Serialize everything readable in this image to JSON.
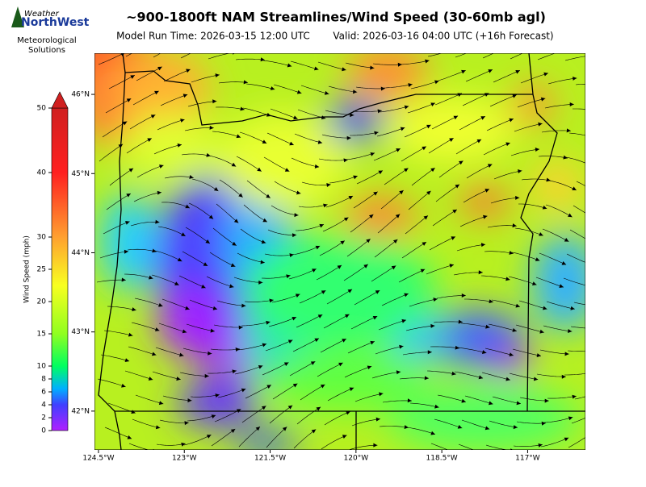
{
  "header": {
    "logo_top": "Weather",
    "logo_main": "NorthWest",
    "logo_sub1": "Meteorological",
    "logo_sub2": "Solutions",
    "title": "~900-1800ft NAM Streamlines/Wind Speed (30-60mb agl)",
    "model_run": "Model Run Time: 2026-03-15 12:00 UTC",
    "valid": "Valid: 2026-03-16 04:00 UTC  (+16h Forecast)"
  },
  "colorbar": {
    "label": "Wind Speed (mph)",
    "lim": [
      0,
      50
    ],
    "ticks": [
      0,
      2,
      4,
      6,
      8,
      10,
      15,
      20,
      25,
      30,
      40,
      50
    ]
  },
  "map": {
    "xlim": [
      -124.57,
      -115.99
    ],
    "ylim": [
      41.51,
      46.52
    ],
    "xticks": [
      {
        "value": -124.5,
        "label": "124.5°W"
      },
      {
        "value": -123,
        "label": "123°W"
      },
      {
        "value": -121.5,
        "label": "121.5°W"
      },
      {
        "value": -120,
        "label": "120°W"
      },
      {
        "value": -118.5,
        "label": "118.5°W"
      },
      {
        "value": -117,
        "label": "117°W"
      }
    ],
    "yticks": [
      {
        "value": 42,
        "label": "42°N"
      },
      {
        "value": 43,
        "label": "43°N"
      },
      {
        "value": 44,
        "label": "44°N"
      },
      {
        "value": 45,
        "label": "45°N"
      },
      {
        "value": 46,
        "label": "46°N"
      }
    ]
  }
}
